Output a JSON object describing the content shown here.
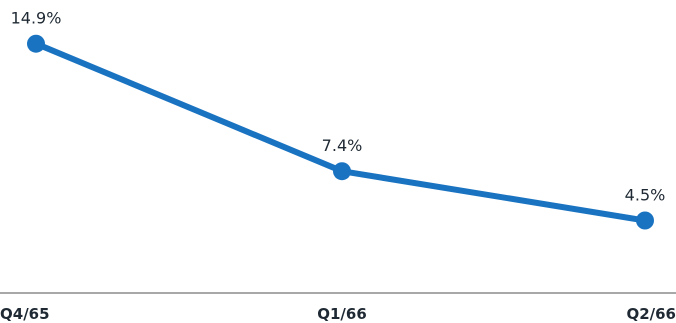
{
  "chart_data": {
    "type": "line",
    "title": "",
    "xlabel": "",
    "ylabel": "",
    "categories": [
      "Q4/65",
      "Q1/66",
      "Q2/66"
    ],
    "series": [
      {
        "values": [
          14.9,
          7.4,
          4.5
        ],
        "labels": [
          "14.9%",
          "7.4%",
          "4.5%"
        ],
        "color": "#1a73c1"
      }
    ],
    "ylim": [
      0,
      16
    ],
    "grid": false,
    "legend": "none",
    "axis_color": "#8c8c8c"
  }
}
